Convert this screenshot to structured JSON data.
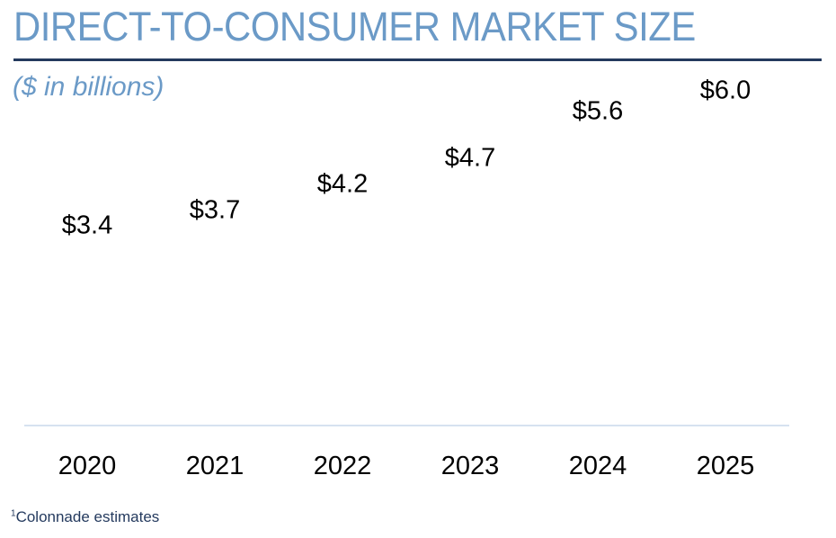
{
  "header": {
    "title": "DIRECT-TO-CONSUMER MARKET SIZE",
    "subtitle": "($ in billions)"
  },
  "footnote": {
    "marker": "1",
    "text": "Colonnade estimates"
  },
  "colors": {
    "title": "#6b9ac7",
    "rule": "#243a5e",
    "baseline": "#d6e2f0",
    "text": "#000000"
  },
  "chart_data": {
    "type": "bar",
    "title": "DIRECT-TO-CONSUMER MARKET SIZE",
    "subtitle": "($ in billions)",
    "categories": [
      "2020",
      "2021",
      "2022",
      "2023",
      "2024",
      "2025"
    ],
    "values": [
      3.4,
      3.7,
      4.2,
      4.7,
      5.6,
      6.0
    ],
    "data_labels": [
      "$3.4",
      "$3.7",
      "$4.2",
      "$4.7",
      "$5.6",
      "$6.0"
    ],
    "xlabel": "",
    "ylabel": "",
    "grid": false,
    "legend": "none",
    "bar_fill": "car photograph (sunset background)"
  }
}
